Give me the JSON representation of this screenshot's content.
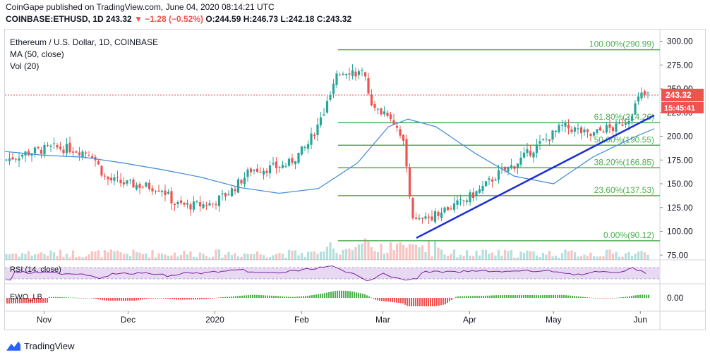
{
  "header": {
    "published_line": "CoinGape published on TradingView.com, June 04, 2020 08:14:21 UTC",
    "symbol_line_start": "COINBASE:ETHUSD, 1D 243.32 ",
    "change": "▼ −1.28 (−0.52%)",
    "ohlc": " O:244.59 H:246.73 L:242.18 C:243.32"
  },
  "legend": {
    "title": "Ethereum / U.S. Dollar, 1D, COINBASE",
    "ma_label": "MA (50, close)",
    "vol_label": "Vol (20)"
  },
  "panes": {
    "rsi_label": "RSI (14, close)",
    "ewo_label": "EWO_LB",
    "ewo_tick": "0.00"
  },
  "price_badge": {
    "price": "243.32",
    "countdown": "15:45:41"
  },
  "footer": {
    "brand": "TradingView"
  },
  "colors": {
    "up": "#26a69a",
    "down": "#ef5350",
    "ma": "#4a90d9",
    "fib": "#4caf50",
    "trend": "#1c2fd6",
    "rsi": "#7b1fa2",
    "rsi_band": "#e8d9f2",
    "ewo_up": "#4caf50",
    "ewo_down": "#ef5350"
  },
  "chart_data": {
    "type": "candlestick",
    "title": "Ethereum / U.S. Dollar, 1D, COINBASE",
    "x_tick_labels": [
      "Nov",
      "Dec",
      "2020",
      "Feb",
      "Mar",
      "Apr",
      "May",
      "Jun"
    ],
    "y_tick_labels": [
      "75.00",
      "100.00",
      "125.00",
      "150.00",
      "175.00",
      "200.00",
      "225.00",
      "250.00",
      "275.00",
      "300.00"
    ],
    "ylim": [
      70,
      310
    ],
    "last_price": 243.32,
    "fib_levels": [
      {
        "label": "100.00%(290.99)",
        "value": 290.99
      },
      {
        "label": "61.80%(214.26)",
        "value": 214.26
      },
      {
        "label": "50.00%(190.55)",
        "value": 190.55
      },
      {
        "label": "38.20%(166.85)",
        "value": 166.85
      },
      {
        "label": "23.60%(137.53)",
        "value": 137.53
      },
      {
        "label": "0.00%(90.12)",
        "value": 90.12
      }
    ],
    "trendline": {
      "from": {
        "date": "2020-03-13",
        "price": 93
      },
      "to": {
        "date": "2020-06-06",
        "price": 222
      }
    },
    "ma50": [
      {
        "date": "2019-10-18",
        "value": 184
      },
      {
        "date": "2019-11-01",
        "value": 180
      },
      {
        "date": "2019-11-15",
        "value": 178
      },
      {
        "date": "2019-11-29",
        "value": 172
      },
      {
        "date": "2019-12-13",
        "value": 165
      },
      {
        "date": "2019-12-27",
        "value": 157
      },
      {
        "date": "2020-01-10",
        "value": 146
      },
      {
        "date": "2020-01-24",
        "value": 140
      },
      {
        "date": "2020-02-07",
        "value": 145
      },
      {
        "date": "2020-02-21",
        "value": 172
      },
      {
        "date": "2020-03-03",
        "value": 210
      },
      {
        "date": "2020-03-10",
        "value": 218
      },
      {
        "date": "2020-03-20",
        "value": 210
      },
      {
        "date": "2020-04-03",
        "value": 182
      },
      {
        "date": "2020-04-17",
        "value": 158
      },
      {
        "date": "2020-05-01",
        "value": 150
      },
      {
        "date": "2020-05-15",
        "value": 178
      },
      {
        "date": "2020-05-29",
        "value": 198
      },
      {
        "date": "2020-06-06",
        "value": 208
      }
    ],
    "price_path": [
      {
        "date": "2019-10-18",
        "close": 175
      },
      {
        "date": "2019-10-25",
        "close": 182
      },
      {
        "date": "2019-11-04",
        "close": 188
      },
      {
        "date": "2019-11-10",
        "close": 187
      },
      {
        "date": "2019-11-18",
        "close": 182
      },
      {
        "date": "2019-11-23",
        "close": 155
      },
      {
        "date": "2019-11-30",
        "close": 150
      },
      {
        "date": "2019-12-06",
        "close": 148
      },
      {
        "date": "2019-12-13",
        "close": 145
      },
      {
        "date": "2019-12-18",
        "close": 128
      },
      {
        "date": "2019-12-24",
        "close": 127
      },
      {
        "date": "2019-12-31",
        "close": 129
      },
      {
        "date": "2020-01-07",
        "close": 143
      },
      {
        "date": "2020-01-14",
        "close": 165
      },
      {
        "date": "2020-01-20",
        "close": 166
      },
      {
        "date": "2020-01-27",
        "close": 170
      },
      {
        "date": "2020-02-03",
        "close": 190
      },
      {
        "date": "2020-02-09",
        "close": 225
      },
      {
        "date": "2020-02-14",
        "close": 265
      },
      {
        "date": "2020-02-17",
        "close": 270
      },
      {
        "date": "2020-02-23",
        "close": 265
      },
      {
        "date": "2020-02-27",
        "close": 227
      },
      {
        "date": "2020-03-03",
        "close": 225
      },
      {
        "date": "2020-03-08",
        "close": 200
      },
      {
        "date": "2020-03-12",
        "close": 110
      },
      {
        "date": "2020-03-16",
        "close": 112
      },
      {
        "date": "2020-03-22",
        "close": 122
      },
      {
        "date": "2020-03-29",
        "close": 130
      },
      {
        "date": "2020-04-05",
        "close": 144
      },
      {
        "date": "2020-04-11",
        "close": 160
      },
      {
        "date": "2020-04-17",
        "close": 170
      },
      {
        "date": "2020-04-23",
        "close": 185
      },
      {
        "date": "2020-04-29",
        "close": 198
      },
      {
        "date": "2020-05-04",
        "close": 210
      },
      {
        "date": "2020-05-09",
        "close": 207
      },
      {
        "date": "2020-05-14",
        "close": 200
      },
      {
        "date": "2020-05-19",
        "close": 208
      },
      {
        "date": "2020-05-23",
        "close": 208
      },
      {
        "date": "2020-05-28",
        "close": 220
      },
      {
        "date": "2020-06-01",
        "close": 243
      },
      {
        "date": "2020-06-04",
        "close": 243.32
      }
    ]
  }
}
